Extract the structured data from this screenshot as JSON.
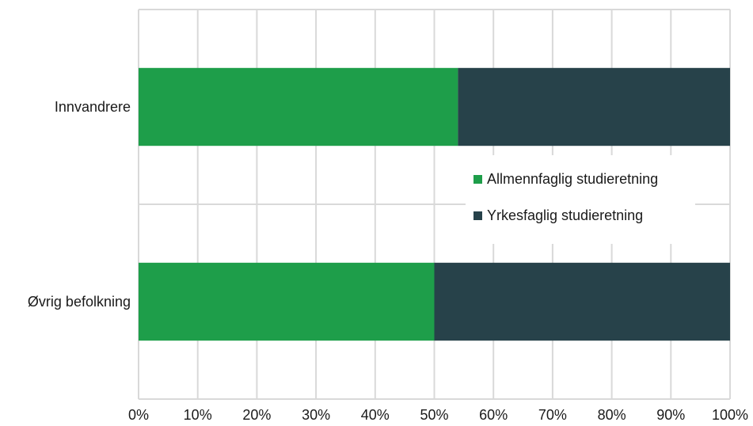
{
  "chart_data": {
    "type": "bar",
    "orientation": "horizontal",
    "stacked": "percent",
    "categories": [
      "Innvandrere",
      "Øvrig befolkning"
    ],
    "series": [
      {
        "name": "Allmennfaglig studieretning",
        "values": [
          54,
          50
        ],
        "color": "#1e9e4a"
      },
      {
        "name": "Yrkesfaglig studieretning",
        "values": [
          46,
          50
        ],
        "color": "#27424a"
      }
    ],
    "xlim": [
      0,
      100
    ],
    "x_ticks": [
      "0%",
      "10%",
      "20%",
      "30%",
      "40%",
      "50%",
      "60%",
      "70%",
      "80%",
      "90%",
      "100%"
    ],
    "grid": true,
    "legend_position": "right-center",
    "title": "",
    "xlabel": "",
    "ylabel": ""
  }
}
